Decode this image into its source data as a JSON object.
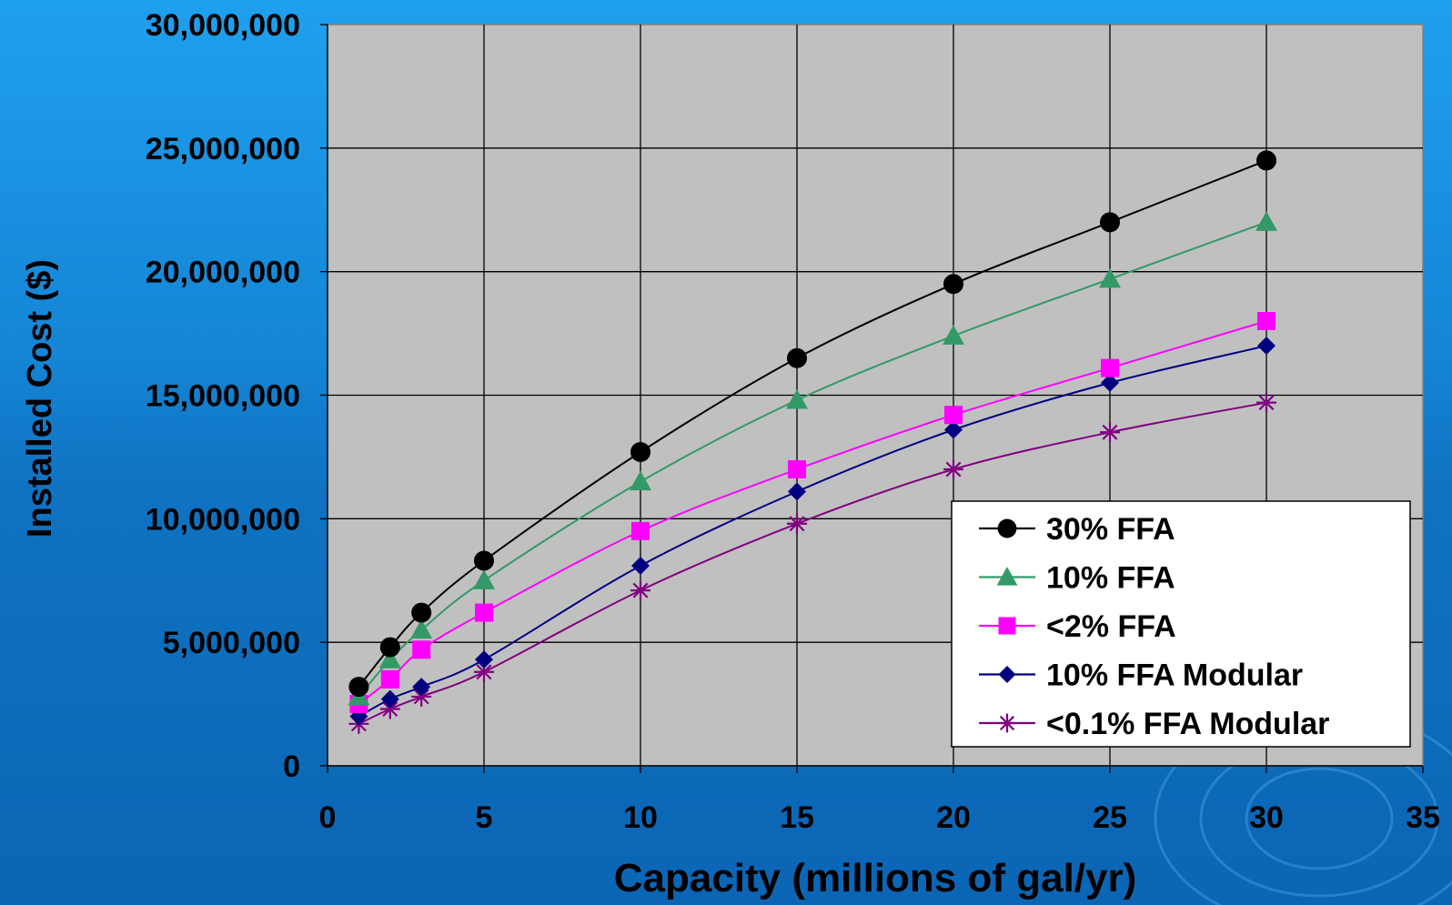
{
  "chart_data": {
    "type": "line",
    "xlabel": "Capacity (millions of gal/yr)",
    "ylabel": "Installed Cost ($)",
    "xlim": [
      0,
      35
    ],
    "ylim": [
      0,
      30000000
    ],
    "x_ticks": [
      "0",
      "5",
      "10",
      "15",
      "20",
      "25",
      "30",
      "35"
    ],
    "x_tick_values": [
      0,
      5,
      10,
      15,
      20,
      25,
      30,
      35
    ],
    "y_ticks": [
      "0",
      "5,000,000",
      "10,000,000",
      "15,000,000",
      "20,000,000",
      "25,000,000",
      "30,000,000"
    ],
    "y_tick_values": [
      0,
      5000000,
      10000000,
      15000000,
      20000000,
      25000000,
      30000000
    ],
    "grid": true,
    "legend_position": "bottom-right",
    "plot_background": "#c0c0c0",
    "series": [
      {
        "name": "30% FFA",
        "color": "#000000",
        "marker": "circle",
        "x": [
          1,
          2,
          3,
          5,
          10,
          15,
          20,
          25,
          30
        ],
        "y": [
          3200000,
          4800000,
          6200000,
          8300000,
          12700000,
          16500000,
          19500000,
          22000000,
          24500000
        ]
      },
      {
        "name": "10% FFA",
        "color": "#339966",
        "marker": "triangle",
        "x": [
          1,
          2,
          3,
          5,
          10,
          15,
          20,
          25,
          30
        ],
        "y": [
          2800000,
          4300000,
          5500000,
          7500000,
          11500000,
          14800000,
          17400000,
          19700000,
          22000000
        ]
      },
      {
        "name": "<2%  FFA",
        "color": "#ff00ff",
        "marker": "square",
        "x": [
          1,
          2,
          3,
          5,
          10,
          15,
          20,
          25,
          30
        ],
        "y": [
          2500000,
          3500000,
          4700000,
          6200000,
          9500000,
          12000000,
          14200000,
          16100000,
          18000000
        ]
      },
      {
        "name": "10% FFA Modular",
        "color": "#000080",
        "marker": "diamond",
        "x": [
          1,
          2,
          3,
          5,
          10,
          15,
          20,
          25,
          30
        ],
        "y": [
          2000000,
          2700000,
          3200000,
          4300000,
          8100000,
          11100000,
          13600000,
          15500000,
          17000000
        ]
      },
      {
        "name": "<0.1% FFA Modular",
        "color": "#800080",
        "marker": "asterisk",
        "x": [
          1,
          2,
          3,
          5,
          10,
          15,
          20,
          25,
          30
        ],
        "y": [
          1700000,
          2300000,
          2800000,
          3800000,
          7100000,
          9800000,
          12000000,
          13500000,
          14700000
        ]
      }
    ]
  }
}
